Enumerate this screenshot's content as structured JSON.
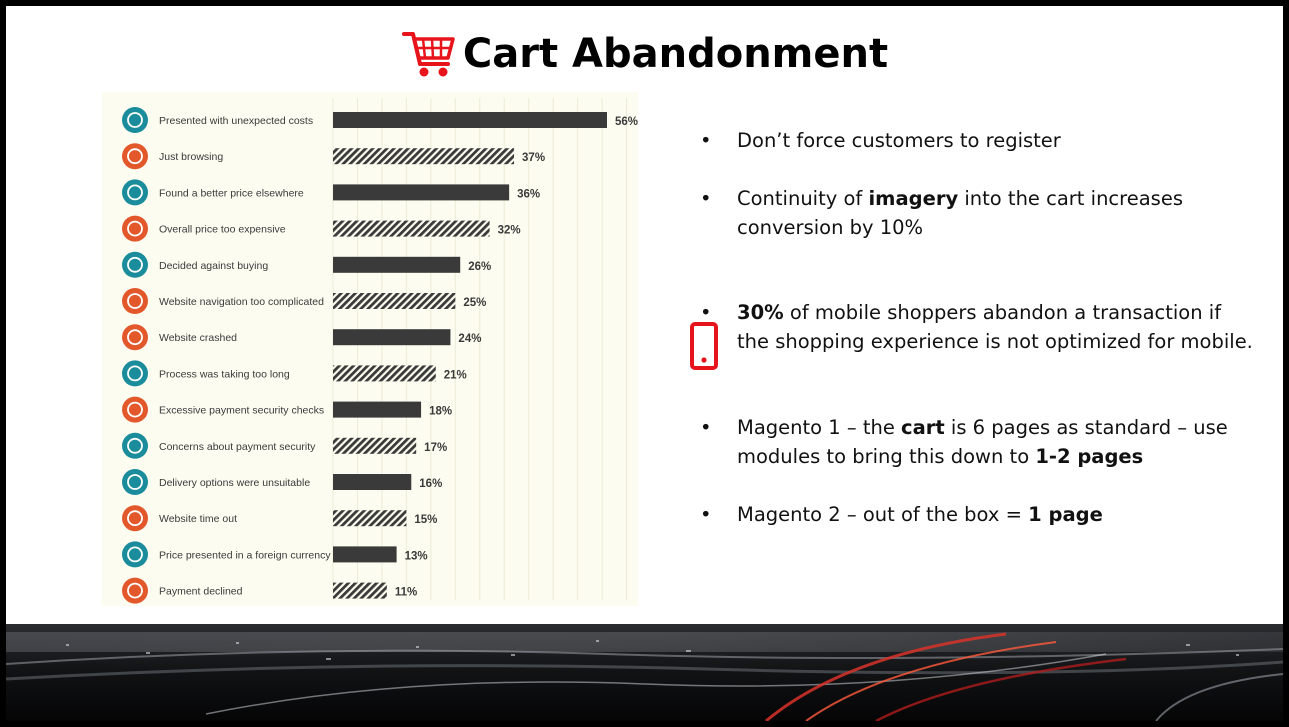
{
  "slide": {
    "title": "Cart Abandonment",
    "accent_color": "#e8141b"
  },
  "icons": {
    "title_icon": "shopping-cart-icon",
    "bullet_icon": "mobile-phone-icon"
  },
  "chart_data": {
    "type": "bar",
    "orientation": "horizontal",
    "unit": "%",
    "xlim": [
      0,
      60
    ],
    "grid": true,
    "categories": [
      "Presented with unexpected costs",
      "Just browsing",
      "Found a better price elsewhere",
      "Overall price too expensive",
      "Decided against buying",
      "Website navigation too complicated",
      "Website crashed",
      "Process was taking too long",
      "Excessive payment security checks",
      "Concerns about payment security",
      "Delivery options were unsuitable",
      "Website time out",
      "Price presented in a foreign currency",
      "Payment declined"
    ],
    "values": [
      56,
      37,
      36,
      32,
      26,
      25,
      24,
      21,
      18,
      17,
      16,
      15,
      13,
      11
    ],
    "value_labels": [
      "56%",
      "37%",
      "36%",
      "32%",
      "26%",
      "25%",
      "24%",
      "21%",
      "18%",
      "17%",
      "16%",
      "15%",
      "13%",
      "11%"
    ],
    "bar_fill": [
      "solid",
      "hatched",
      "solid",
      "hatched",
      "solid",
      "hatched",
      "solid",
      "hatched",
      "solid",
      "hatched",
      "solid",
      "hatched",
      "solid",
      "hatched"
    ],
    "icons": [
      "dollar-icon",
      "search-icon",
      "price-tag-icon",
      "expensive-box-icon",
      "cart-back-icon",
      "ships-wheel-icon",
      "traffic-cone-icon",
      "clock-icon",
      "security-card-icon",
      "padlock-icon",
      "delivery-truck-icon",
      "traffic-cone-icon",
      "globe-icon",
      "declined-x-icon"
    ],
    "icon_colors": [
      "#1a8c9c",
      "#e2582b",
      "#1a8c9c",
      "#e2582b",
      "#1a8c9c",
      "#e2582b",
      "#e2582b",
      "#1a8c9c",
      "#e2582b",
      "#1a8c9c",
      "#1a8c9c",
      "#e2582b",
      "#1a8c9c",
      "#e2582b"
    ],
    "bar_color": "#3a3a3a",
    "background_color": "#fcfcf0"
  },
  "bullets": [
    [
      {
        "t": "Don’t force customers to register",
        "b": false
      }
    ],
    [
      {
        "t": "Continuity of ",
        "b": false
      },
      {
        "t": "imagery",
        "b": true
      },
      {
        "t": " into the cart increases conversion by 10%",
        "b": false
      }
    ],
    [
      {
        "t": "30%",
        "b": true
      },
      {
        "t": " of mobile shoppers abandon a transaction if the shopping experience is not optimized for mobile.",
        "b": false
      }
    ],
    [
      {
        "t": "Magento 1 – the ",
        "b": false
      },
      {
        "t": "cart",
        "b": true
      },
      {
        "t": " is 6 pages as standard – use modules to bring this down to ",
        "b": false
      },
      {
        "t": "1-2 pages",
        "b": true
      }
    ],
    [
      {
        "t": "Magento 2 – out of the box = ",
        "b": false
      },
      {
        "t": "1 page",
        "b": true
      }
    ]
  ],
  "bullet_marker": "•"
}
